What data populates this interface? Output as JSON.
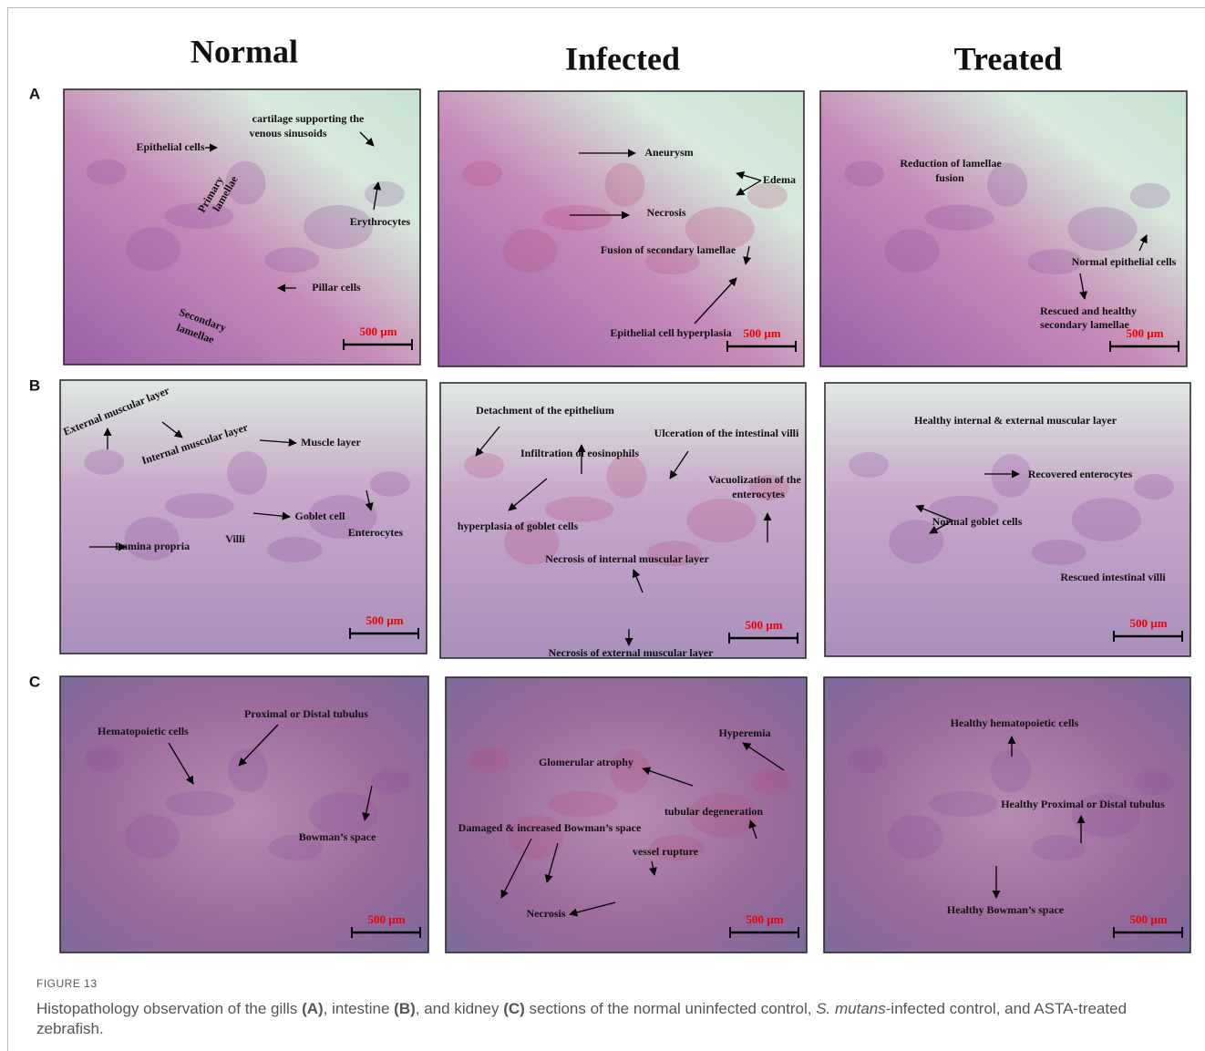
{
  "columns": [
    "Normal",
    "Infected",
    "Treated"
  ],
  "rows": [
    {
      "letter": "A",
      "panels": [
        {
          "labels": [
            "cartilage supporting the",
            "venous sinusoids",
            "Epithelial cells",
            "Primary",
            "lamellae",
            "Erythrocytes",
            "Pillar cells",
            "Secondary",
            "lamellae"
          ],
          "scale": "500 µm"
        },
        {
          "labels": [
            "Aneurysm",
            "Edema",
            "Necrosis",
            "Fusion of secondary lamellae",
            "Epithelial cell hyperplasia"
          ],
          "scale": "500 µm"
        },
        {
          "labels": [
            "Reduction of lamellae",
            "fusion",
            "Normal epithelial cells",
            "Rescued and healthy",
            "secondary lamellae"
          ],
          "scale": "500 µm"
        }
      ]
    },
    {
      "letter": "B",
      "panels": [
        {
          "labels": [
            "External muscular layer",
            "Internal muscular layer",
            "Muscle layer",
            "Goblet cell",
            "Enterocytes",
            "Lamina propria",
            "Villi"
          ],
          "scale": "500 µm"
        },
        {
          "labels": [
            "Detachment of the epithelium",
            "Ulceration of the intestinal villi",
            "Infiltration of eosinophils",
            "Vacuolization of the",
            "enterocytes",
            "hyperplasia of goblet cells",
            "Necrosis of internal muscular layer",
            "Necrosis of external muscular layer"
          ],
          "scale": "500 µm"
        },
        {
          "labels": [
            "Healthy internal & external muscular layer",
            "Recovered enterocytes",
            "Normal goblet cells",
            "Rescued intestinal villi"
          ],
          "scale": "500 µm"
        }
      ]
    },
    {
      "letter": "C",
      "panels": [
        {
          "labels": [
            "Proximal or Distal tubulus",
            "Hematopoietic cells",
            "Bowman’s space"
          ],
          "scale": "500 µm"
        },
        {
          "labels": [
            "Hyperemia",
            "Glomerular atrophy",
            "tubular degeneration",
            "Damaged & increased Bowman’s space",
            "vessel rupture",
            "Necrosis"
          ],
          "scale": "500 µm"
        },
        {
          "labels": [
            "Healthy hematopoietic cells",
            "Healthy Proximal or Distal tubulus",
            "Healthy Bowman’s space"
          ],
          "scale": "500 µm"
        }
      ]
    }
  ],
  "caption": {
    "figure": "FIGURE 13",
    "parts": [
      "Histopathology observation of the gills ",
      "(A)",
      ", intestine ",
      "(B)",
      ", and kidney ",
      "(C)",
      " sections of the normal uninfected control, ",
      "S. mutans",
      "-infected control, and ASTA-treated zebrafish."
    ]
  }
}
